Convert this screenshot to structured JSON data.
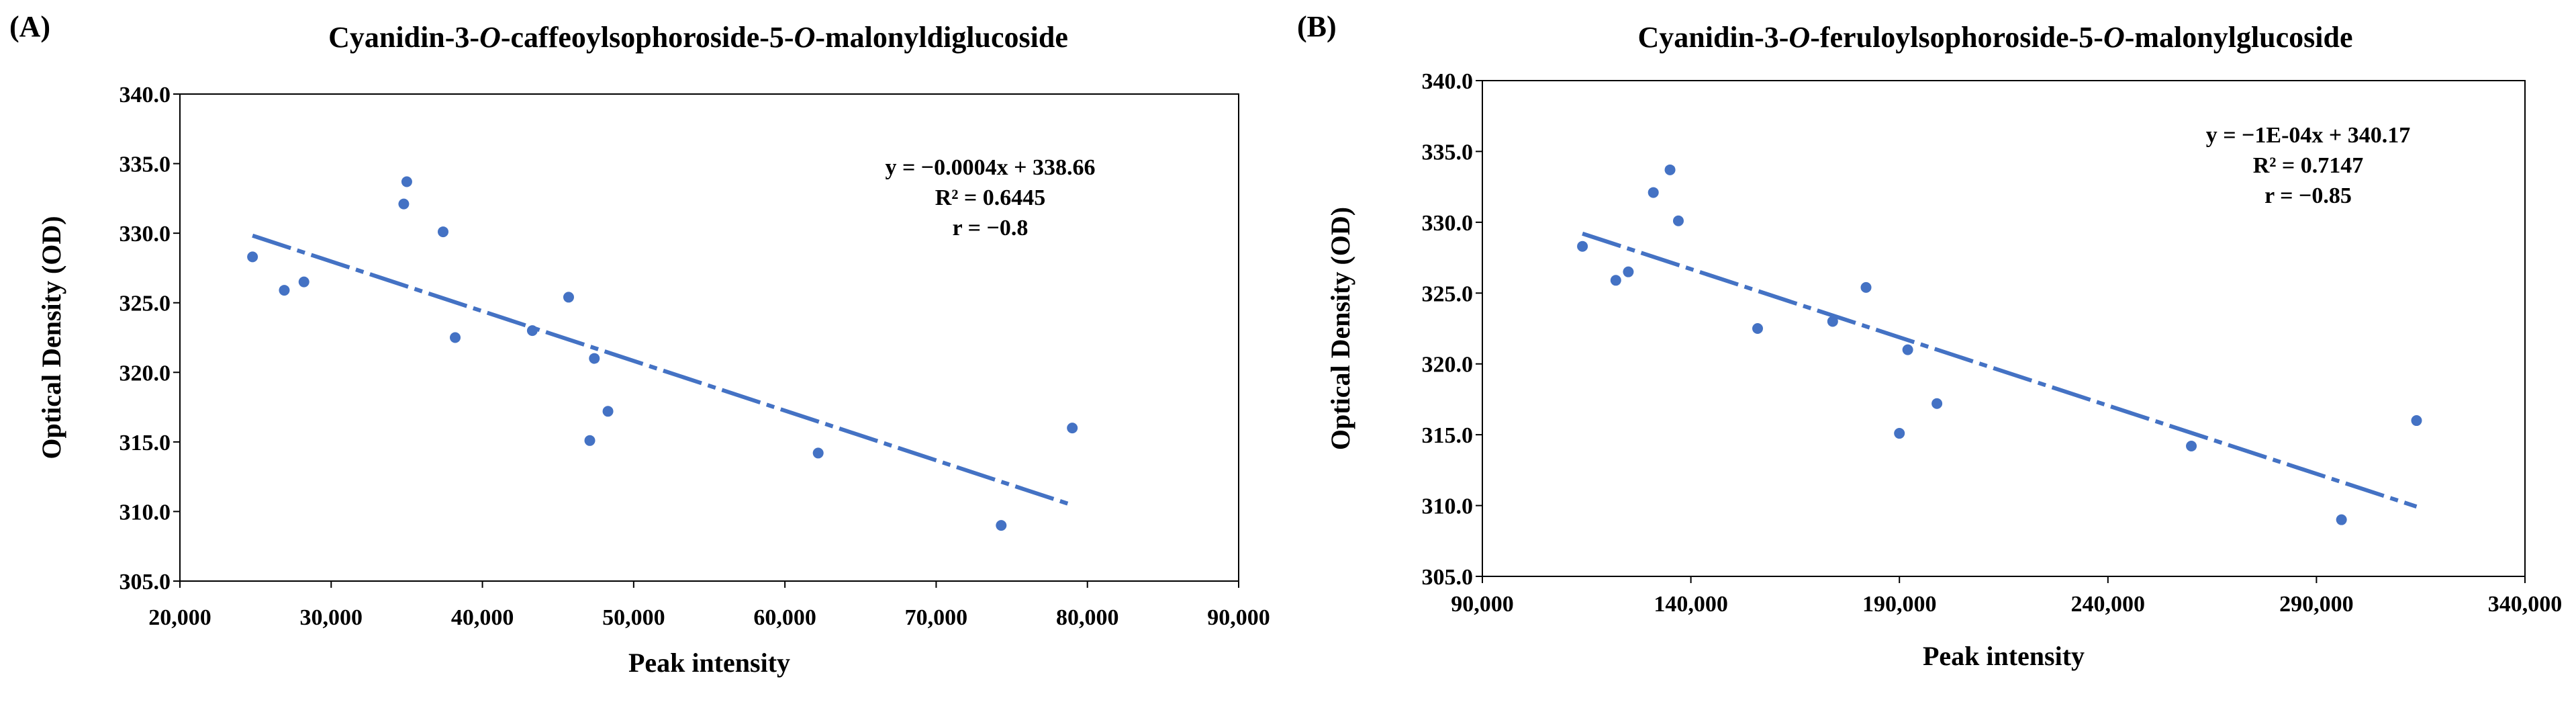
{
  "chart_data": [
    {
      "panel": "(A)",
      "type": "scatter",
      "title": "Cyanidin-3-O-caffeoylsophoroside-5-O-malonyldiglucoside",
      "title_parts": [
        {
          "text": "Cyanidin-3-",
          "italic": false
        },
        {
          "text": "O",
          "italic": true
        },
        {
          "text": "-caffeoylsophoroside-5-",
          "italic": false
        },
        {
          "text": "O",
          "italic": true
        },
        {
          "text": "-malonyldiglucoside",
          "italic": false
        }
      ],
      "xlabel": "Peak intensity",
      "ylabel": "Optical Density (OD)",
      "xlim": [
        20000,
        90000
      ],
      "ylim": [
        305.0,
        340.0
      ],
      "xticks": [
        20000,
        30000,
        40000,
        50000,
        60000,
        70000,
        80000,
        90000
      ],
      "xtick_labels": [
        "20,000",
        "30,000",
        "40,000",
        "50,000",
        "60,000",
        "70,000",
        "80,000",
        "90,000"
      ],
      "yticks": [
        305,
        310,
        315,
        320,
        325,
        330,
        335,
        340
      ],
      "ytick_labels": [
        "305.0",
        "310.0",
        "315.0",
        "320.0",
        "325.0",
        "330.0",
        "335.0",
        "340.0"
      ],
      "grid": false,
      "legend": "none",
      "marker_color": "#4472C4",
      "trendline_color": "#4472C4",
      "points": {
        "x": [
          24800,
          26900,
          28200,
          34800,
          35000,
          37400,
          38200,
          43300,
          45700,
          47100,
          47400,
          48300,
          62200,
          74300,
          79000
        ],
        "y": [
          328.3,
          325.9,
          326.5,
          332.1,
          333.7,
          330.1,
          322.5,
          323.0,
          325.4,
          315.1,
          321.0,
          317.2,
          314.2,
          309.0,
          316.0
        ]
      },
      "trendline": {
        "slope": -0.0004,
        "intercept": 338.66,
        "x_range": [
          24800,
          79000
        ]
      },
      "annotations": [
        "y = −0.0004x + 338.66",
        "R² = 0.6445",
        "r = −0.8"
      ]
    },
    {
      "panel": "(B)",
      "type": "scatter",
      "title": "Cyanidin-3-O-feruloylsophoroside-5-O-malonylglucoside",
      "title_parts": [
        {
          "text": "Cyanidin-3-",
          "italic": false
        },
        {
          "text": "O",
          "italic": true
        },
        {
          "text": "-feruloylsophoroside-5-",
          "italic": false
        },
        {
          "text": "O",
          "italic": true
        },
        {
          "text": "-malonylglucoside",
          "italic": false
        }
      ],
      "xlabel": "Peak intensity",
      "ylabel": "Optical Density (OD)",
      "xlim": [
        90000,
        340000
      ],
      "ylim": [
        305.0,
        340.0
      ],
      "xticks": [
        90000,
        140000,
        190000,
        240000,
        290000,
        340000
      ],
      "xtick_labels": [
        "90,000",
        "140,000",
        "190,000",
        "240,000",
        "290,000",
        "340,000"
      ],
      "yticks": [
        305,
        310,
        315,
        320,
        325,
        330,
        335,
        340
      ],
      "ytick_labels": [
        "305.0",
        "310.0",
        "315.0",
        "320.0",
        "325.0",
        "330.0",
        "335.0",
        "340.0"
      ],
      "grid": false,
      "legend": "none",
      "marker_color": "#4472C4",
      "trendline_color": "#4472C4",
      "points": {
        "x": [
          114000,
          122000,
          125000,
          131000,
          135000,
          137000,
          156000,
          174000,
          182000,
          190000,
          192000,
          199000,
          260000,
          296000,
          314000
        ],
        "y": [
          328.3,
          325.9,
          326.5,
          332.1,
          333.7,
          330.1,
          322.5,
          323.0,
          325.4,
          315.1,
          321.0,
          317.2,
          314.2,
          309.0,
          316.0
        ]
      },
      "trendline": {
        "slope": -0.0001,
        "intercept": 340.17,
        "x_range": [
          114000,
          314000
        ]
      },
      "annotations": [
        "y = −1E-04x + 340.17",
        "R² = 0.7147",
        "r = −0.85"
      ]
    }
  ]
}
